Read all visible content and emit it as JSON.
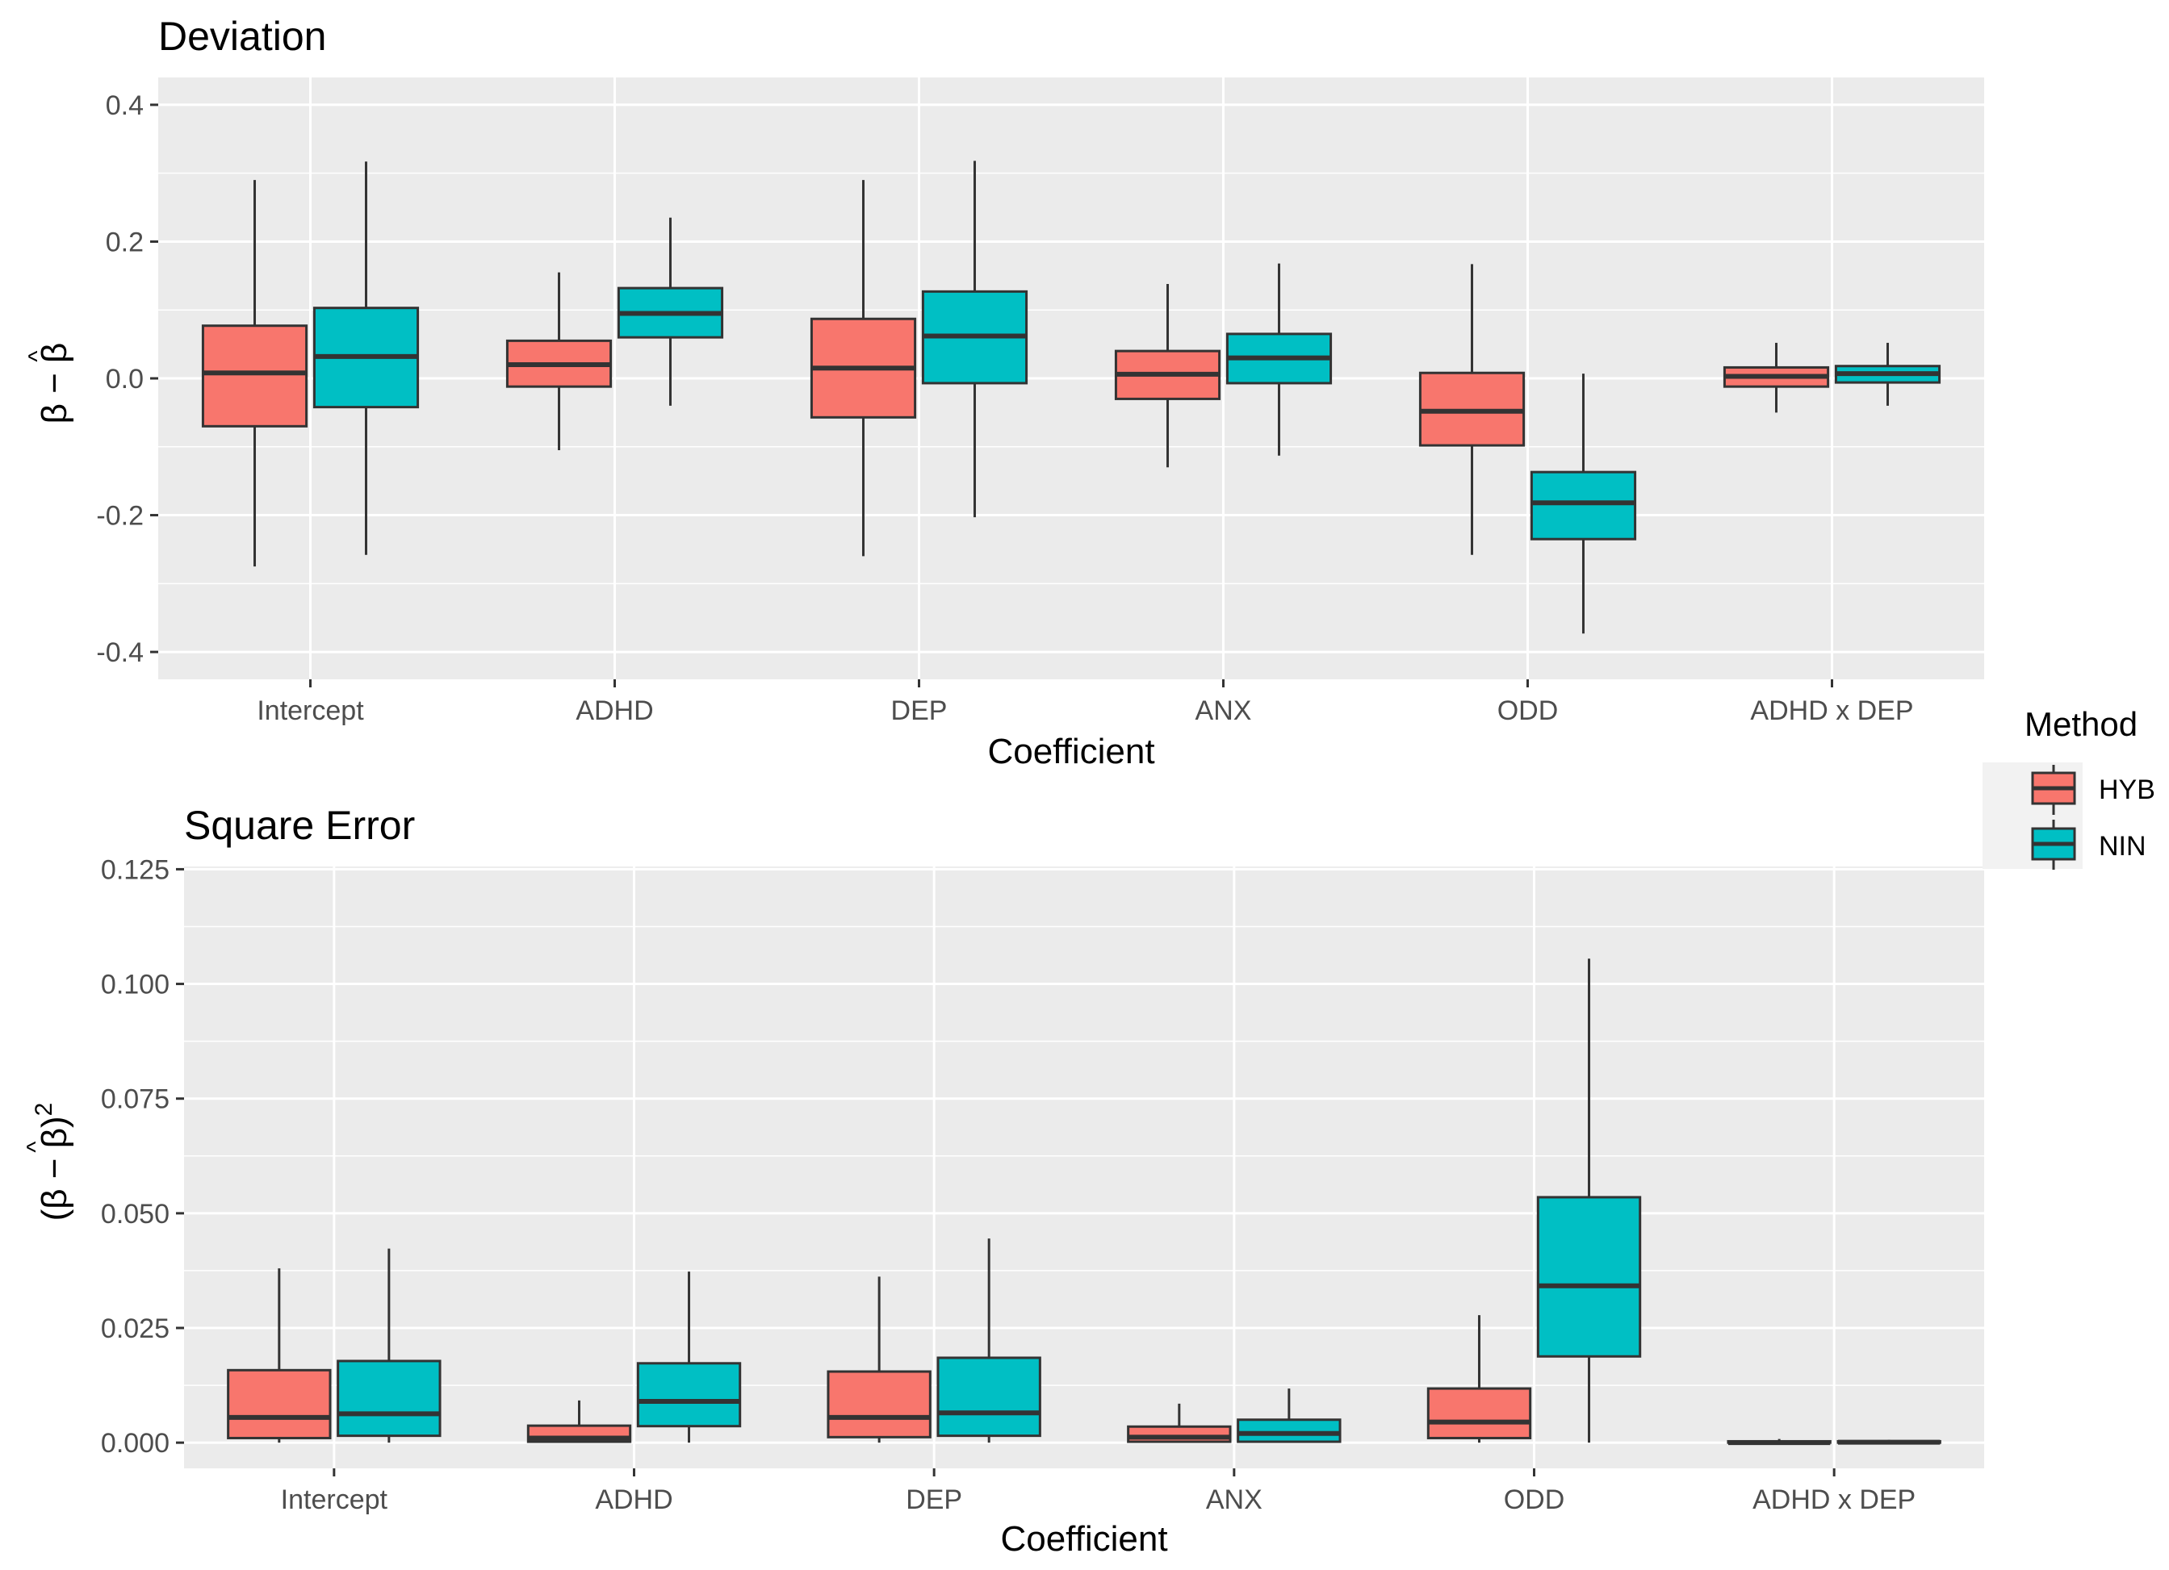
{
  "colors": {
    "HYB": "#F8766D",
    "NIN": "#00BFC4",
    "panel": "#EBEBEB",
    "grid": "#FFFFFF",
    "box_line": "#333333"
  },
  "legend": {
    "title": "Method",
    "entries": [
      "HYB",
      "NIN"
    ]
  },
  "chart_data": [
    {
      "type": "boxplot",
      "title": "Deviation",
      "xlabel": "Coefficient",
      "ylabel_parts": [
        "β − ",
        "β",
        "^"
      ],
      "ylim": [
        -0.44,
        0.44
      ],
      "yticks": [
        -0.4,
        -0.2,
        0.0,
        0.2,
        0.4
      ],
      "ytick_labels": [
        "-0.4",
        "-0.2",
        "0.0",
        "0.2",
        "0.4"
      ],
      "categories": [
        "Intercept",
        "ADHD",
        "DEP",
        "ANX",
        "ODD",
        "ADHD x DEP"
      ],
      "series": [
        {
          "name": "HYB",
          "boxes": [
            {
              "min": -0.275,
              "q1": -0.07,
              "median": 0.008,
              "q3": 0.077,
              "max": 0.29
            },
            {
              "min": -0.105,
              "q1": -0.012,
              "median": 0.02,
              "q3": 0.055,
              "max": 0.155
            },
            {
              "min": -0.26,
              "q1": -0.057,
              "median": 0.015,
              "q3": 0.087,
              "max": 0.29
            },
            {
              "min": -0.13,
              "q1": -0.03,
              "median": 0.006,
              "q3": 0.04,
              "max": 0.138
            },
            {
              "min": -0.258,
              "q1": -0.098,
              "median": -0.048,
              "q3": 0.008,
              "max": 0.167
            },
            {
              "min": -0.05,
              "q1": -0.012,
              "median": 0.003,
              "q3": 0.016,
              "max": 0.052
            }
          ]
        },
        {
          "name": "NIN",
          "boxes": [
            {
              "min": -0.258,
              "q1": -0.042,
              "median": 0.032,
              "q3": 0.103,
              "max": 0.317
            },
            {
              "min": -0.04,
              "q1": 0.06,
              "median": 0.095,
              "q3": 0.132,
              "max": 0.235
            },
            {
              "min": -0.203,
              "q1": -0.007,
              "median": 0.062,
              "q3": 0.127,
              "max": 0.318
            },
            {
              "min": -0.113,
              "q1": -0.007,
              "median": 0.03,
              "q3": 0.065,
              "max": 0.168
            },
            {
              "min": -0.373,
              "q1": -0.235,
              "median": -0.182,
              "q3": -0.137,
              "max": 0.007
            },
            {
              "min": -0.04,
              "q1": -0.006,
              "median": 0.007,
              "q3": 0.018,
              "max": 0.052
            }
          ]
        }
      ]
    },
    {
      "type": "boxplot",
      "title": "Square Error",
      "xlabel": "Coefficient",
      "ylabel_parts": [
        "(β − ",
        "β",
        ")",
        "2",
        "^"
      ],
      "ylim": [
        -0.0056,
        0.1256
      ],
      "yticks": [
        0.0,
        0.025,
        0.05,
        0.075,
        0.1,
        0.125
      ],
      "ytick_labels": [
        "0.000",
        "0.025",
        "0.050",
        "0.075",
        "0.100",
        "0.125"
      ],
      "categories": [
        "Intercept",
        "ADHD",
        "DEP",
        "ANX",
        "ODD",
        "ADHD x DEP"
      ],
      "series": [
        {
          "name": "HYB",
          "boxes": [
            {
              "min": 0.0,
              "q1": 0.001,
              "median": 0.0055,
              "q3": 0.0158,
              "max": 0.038
            },
            {
              "min": 0.0,
              "q1": 0.0002,
              "median": 0.001,
              "q3": 0.0037,
              "max": 0.0092
            },
            {
              "min": 0.0,
              "q1": 0.0012,
              "median": 0.0055,
              "q3": 0.0155,
              "max": 0.0362
            },
            {
              "min": 0.0,
              "q1": 0.0002,
              "median": 0.0012,
              "q3": 0.0035,
              "max": 0.0085
            },
            {
              "min": 0.0,
              "q1": 0.001,
              "median": 0.0045,
              "q3": 0.0118,
              "max": 0.0278
            },
            {
              "min": 0.0,
              "q1": 0.0,
              "median": 0.0,
              "q3": 0.0003,
              "max": 0.0008
            }
          ]
        },
        {
          "name": "NIN",
          "boxes": [
            {
              "min": 0.0,
              "q1": 0.0015,
              "median": 0.0063,
              "q3": 0.0178,
              "max": 0.0423
            },
            {
              "min": 0.0,
              "q1": 0.0036,
              "median": 0.009,
              "q3": 0.0173,
              "max": 0.0373
            },
            {
              "min": 0.0,
              "q1": 0.0015,
              "median": 0.0065,
              "q3": 0.0185,
              "max": 0.0445
            },
            {
              "min": 0.0,
              "q1": 0.0002,
              "median": 0.002,
              "q3": 0.005,
              "max": 0.0118
            },
            {
              "min": 0.0,
              "q1": 0.0188,
              "median": 0.0342,
              "q3": 0.0535,
              "max": 0.1055
            },
            {
              "min": 0.0,
              "q1": 0.0,
              "median": 0.0001,
              "q3": 0.0003,
              "max": 0.0006
            }
          ]
        }
      ]
    }
  ]
}
